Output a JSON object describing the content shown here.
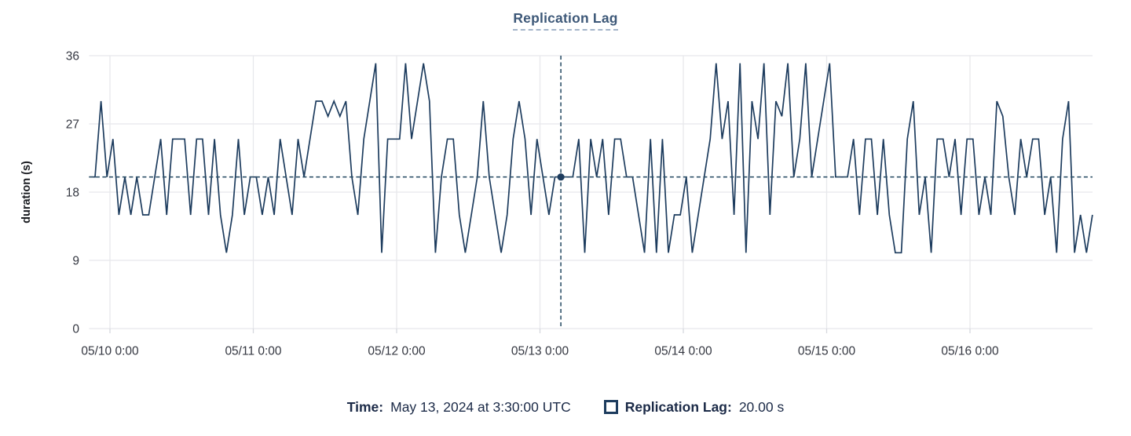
{
  "title": "Replication Lag",
  "readout": {
    "time_label": "Time:",
    "time_value": "May 13, 2024 at 3:30:00 UTC",
    "series_label": "Replication Lag:",
    "series_value": "20.00 s"
  },
  "colors": {
    "line": "#1d3c5e",
    "crosshair": "#2e5068",
    "grid": "#e7e8ec",
    "tick_mark": "#d6d8de",
    "axis_text": "#343741",
    "axis_title_text": "#1a1c21",
    "title_text": "#3d5878",
    "readout_text": "#1b2a47"
  },
  "chart_data": {
    "type": "line",
    "title": "Replication Lag",
    "xlabel": "",
    "ylabel": "duration (s)",
    "ylim": [
      0,
      36
    ],
    "yticks": [
      0,
      9,
      18,
      27,
      36
    ],
    "xticks": [
      {
        "label": "05/10 0:00",
        "hour": 0
      },
      {
        "label": "05/11 0:00",
        "hour": 24
      },
      {
        "label": "05/12 0:00",
        "hour": 48
      },
      {
        "label": "05/13 0:00",
        "hour": 72
      },
      {
        "label": "05/14 0:00",
        "hour": 96
      },
      {
        "label": "05/15 0:00",
        "hour": 120
      },
      {
        "label": "05/16 0:00",
        "hour": 144
      }
    ],
    "grid": true,
    "legend_position": "none",
    "series": [
      {
        "name": "Replication Lag",
        "color": "#1d3c5e",
        "start": "2024-05-09 20:30 UTC",
        "start_hour": -3.5,
        "interval_hours": 1,
        "values": [
          20,
          20,
          30,
          20,
          25,
          15,
          20,
          15,
          20,
          15,
          15,
          20,
          25,
          15,
          25,
          25,
          25,
          15,
          25,
          25,
          15,
          25,
          15,
          10,
          15,
          25,
          15,
          20,
          20,
          15,
          20,
          15,
          25,
          20,
          15,
          25,
          20,
          25,
          30,
          30,
          28,
          30,
          28,
          30,
          20,
          15,
          25,
          30,
          35,
          10,
          25,
          25,
          25,
          35,
          25,
          30,
          35,
          30,
          10,
          20,
          25,
          25,
          15,
          10,
          15,
          20,
          30,
          20,
          15,
          10,
          15,
          25,
          30,
          25,
          15,
          25,
          20,
          15,
          20,
          20,
          20,
          20,
          25,
          10,
          25,
          20,
          25,
          15,
          25,
          25,
          20,
          20,
          15,
          10,
          25,
          10,
          25,
          10,
          15,
          15,
          20,
          10,
          15,
          20,
          25,
          35,
          25,
          30,
          15,
          35,
          10,
          30,
          25,
          35,
          15,
          30,
          28,
          35,
          20,
          25,
          35,
          20,
          25,
          30,
          35,
          20,
          20,
          20,
          25,
          15,
          25,
          25,
          15,
          25,
          15,
          10,
          10,
          25,
          30,
          15,
          20,
          10,
          25,
          25,
          20,
          25,
          15,
          25,
          25,
          15,
          20,
          15,
          30,
          28,
          20,
          15,
          25,
          20,
          25,
          25,
          15,
          20,
          10,
          25,
          30,
          10,
          15,
          10,
          15
        ]
      }
    ],
    "crosshair": {
      "time": "May 13, 2024 at 3:30:00 UTC",
      "hour": 75.5,
      "value": 20,
      "value_label": "20.00 s"
    }
  }
}
